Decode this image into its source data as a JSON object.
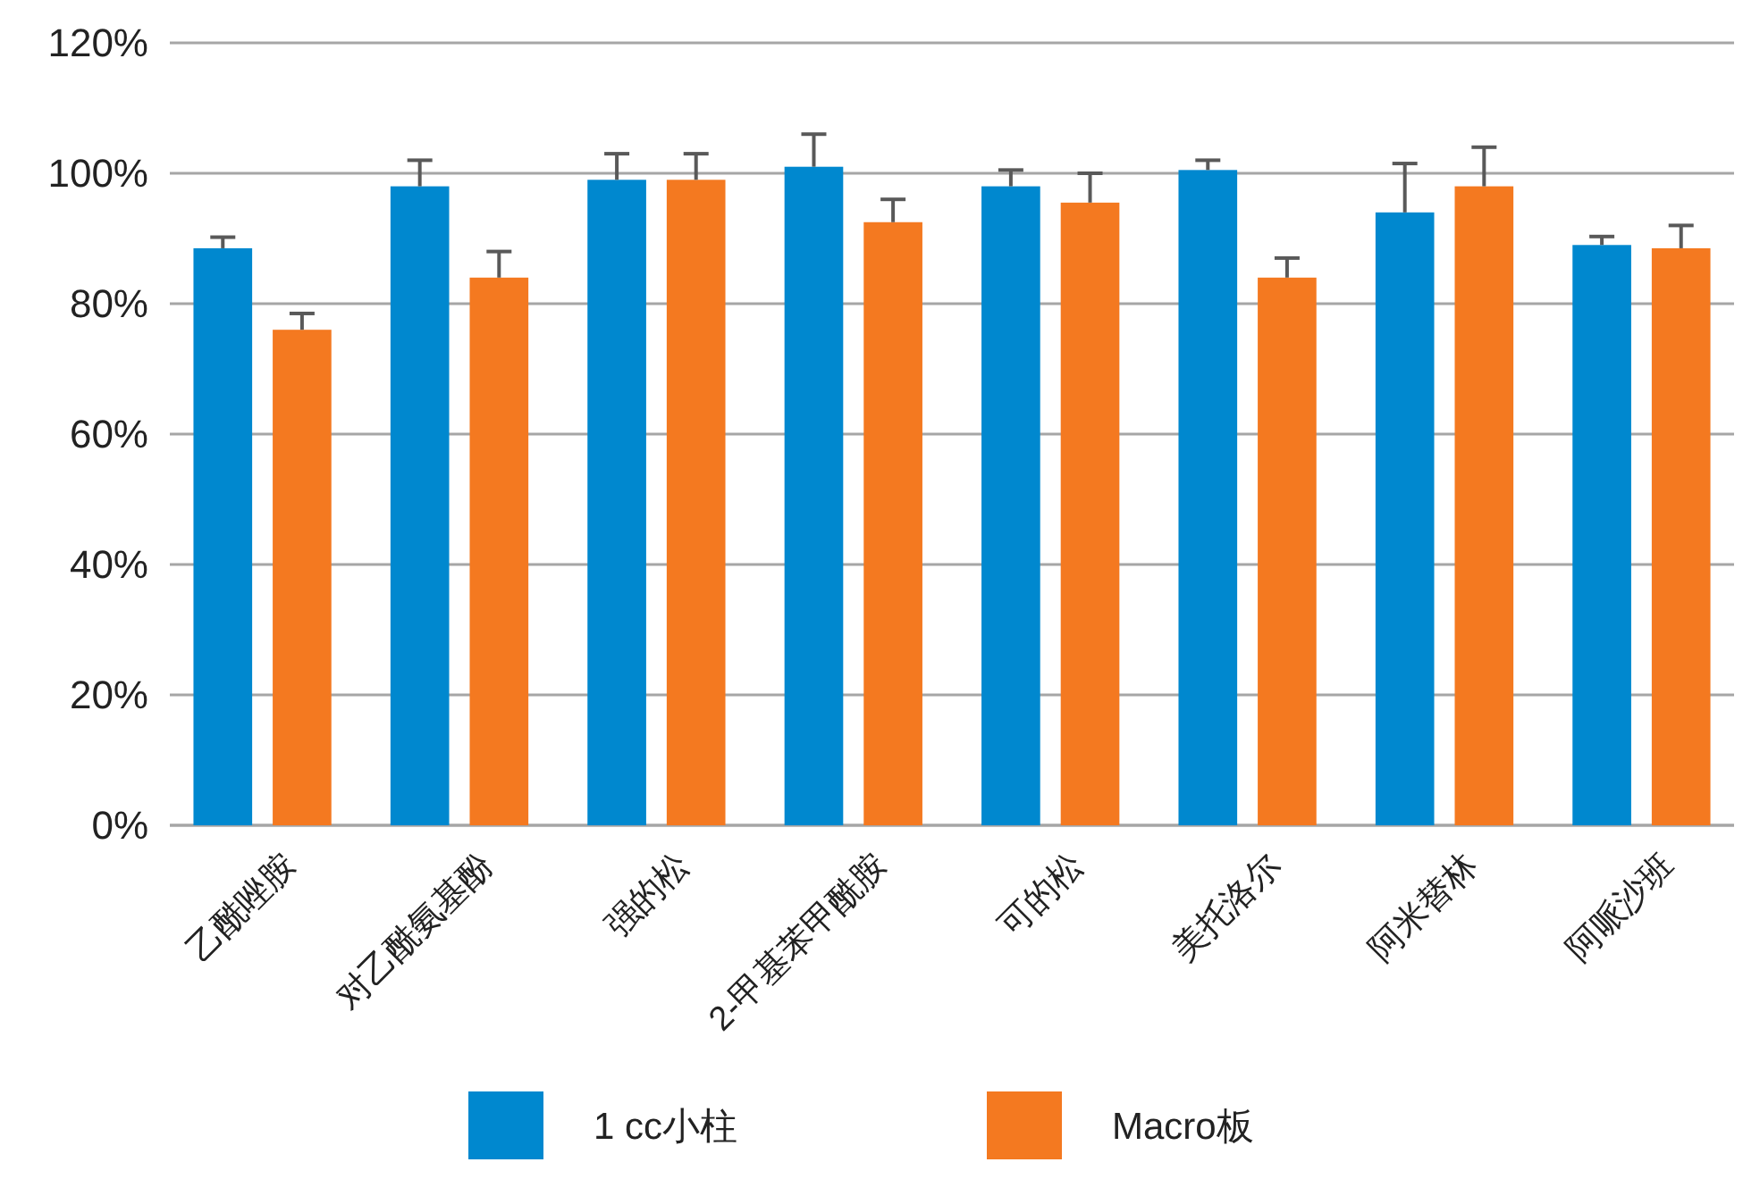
{
  "chart_data": {
    "type": "bar",
    "categories": [
      "乙酰唑胺",
      "对乙酰氨基酚",
      "强的松",
      "2-甲基苯甲酰胺",
      "可的松",
      "美托洛尔",
      "阿米替林",
      "阿哌沙班"
    ],
    "series": [
      {
        "name": "1 cc小柱",
        "color": "#0088cf",
        "values": [
          88.5,
          98,
          99,
          101,
          98,
          100.5,
          94,
          89
        ],
        "errors": [
          [
            88.5,
            90.2
          ],
          [
            98,
            102
          ],
          [
            99,
            103
          ],
          [
            101,
            106
          ],
          [
            98,
            100.5
          ],
          [
            100.5,
            102
          ],
          [
            94,
            101.5
          ],
          [
            89,
            90.3
          ]
        ]
      },
      {
        "name": "Macro板",
        "color": "#f47920",
        "values": [
          76,
          84,
          99,
          92.5,
          95.5,
          84,
          98,
          88.5
        ],
        "errors": [
          [
            76,
            78.5
          ],
          [
            84,
            88
          ],
          [
            99,
            103
          ],
          [
            92.5,
            96
          ],
          [
            95.5,
            100
          ],
          [
            84,
            87
          ],
          [
            98,
            104
          ],
          [
            88.5,
            92
          ]
        ]
      }
    ],
    "ylim": [
      0,
      120
    ],
    "yticks": [
      {
        "value": 0,
        "label": "0%"
      },
      {
        "value": 20,
        "label": "20%"
      },
      {
        "value": 40,
        "label": "40%"
      },
      {
        "value": 60,
        "label": "60%"
      },
      {
        "value": 80,
        "label": "80%"
      },
      {
        "value": 100,
        "label": "100%"
      },
      {
        "value": 120,
        "label": "120%"
      }
    ],
    "grid": "y",
    "legend": "bottom"
  }
}
